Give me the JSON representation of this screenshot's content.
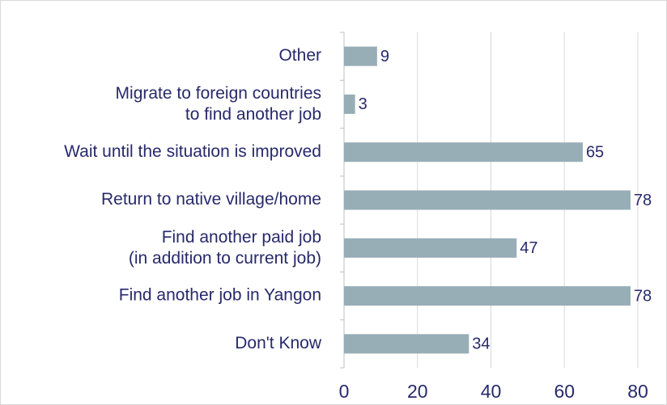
{
  "chart_data": {
    "type": "bar",
    "orientation": "horizontal",
    "categories": [
      "Other",
      "Migrate to foreign countries\nto find another job",
      "Wait until the situation is improved",
      "Return to native village/home",
      "Find another paid job\n(in addition to current job)",
      "Find another job in Yangon",
      "Don't Know"
    ],
    "values": [
      9,
      3,
      65,
      78,
      47,
      78,
      34
    ],
    "color": "#97aeb6",
    "xlim": [
      0,
      80
    ],
    "xticks": [
      0,
      20,
      40,
      60,
      80
    ],
    "grid": true
  }
}
